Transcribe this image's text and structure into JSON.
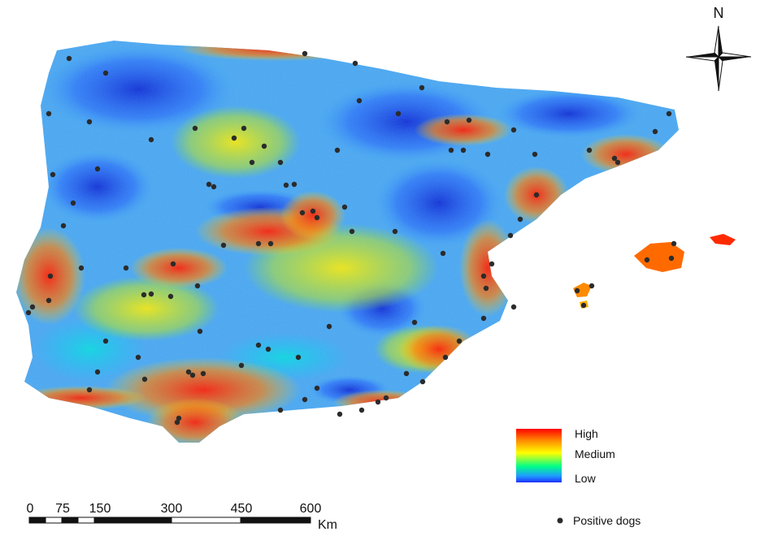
{
  "compass": {
    "north_label": "N",
    "icon": "compass-rose-icon"
  },
  "legend": {
    "high_label": "High",
    "medium_label": "Medium",
    "low_label": "Low",
    "colors": {
      "high": "#ff0000",
      "upper": "#ff8c00",
      "medium": "#ffff00",
      "lower": "#00ff88",
      "low": "#1e64ff",
      "low_deep": "#0032c8"
    }
  },
  "scale_bar": {
    "ticks": [
      "0",
      "75",
      "150",
      "300",
      "450",
      "600"
    ],
    "unit": "Km"
  },
  "points_legend": {
    "label": "Positive dogs",
    "marker_color": "#2b2b2b"
  },
  "map_colors": {
    "land_base": "#5aaaf0",
    "high": "#ff2a00",
    "medium": "#ffe600",
    "low": "#1e46e6"
  }
}
